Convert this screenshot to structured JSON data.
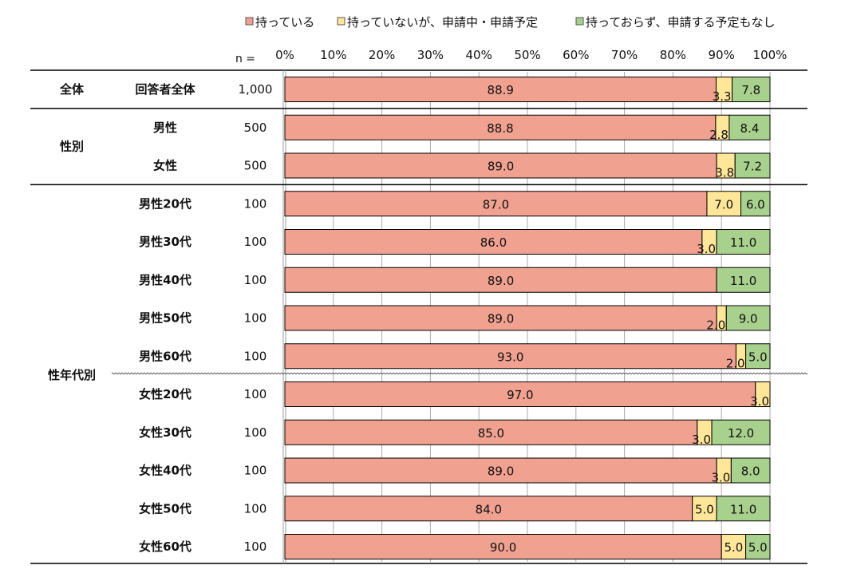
{
  "chart_data": {
    "type": "bar",
    "stacked": true,
    "orientation": "horizontal",
    "n_label": "n =",
    "xlim": [
      0,
      100
    ],
    "ticks": [
      "0%",
      "10%",
      "20%",
      "30%",
      "40%",
      "50%",
      "60%",
      "70%",
      "80%",
      "90%",
      "100%"
    ],
    "series": [
      {
        "name": "持っている",
        "color": "#F0A190"
      },
      {
        "name": "持っていないが、申請中・申請予定",
        "color": "#FFE699"
      },
      {
        "name": "持っておらず、申請する予定もなし",
        "color": "#A9D18E"
      }
    ],
    "groups": [
      {
        "label": "全体",
        "rows": [
          {
            "label": "回答者全体",
            "n": "1,000",
            "values": [
              88.9,
              3.3,
              7.8
            ]
          }
        ]
      },
      {
        "label": "性別",
        "rows": [
          {
            "label": "男性",
            "n": "500",
            "values": [
              88.8,
              2.8,
              8.4
            ]
          },
          {
            "label": "女性",
            "n": "500",
            "values": [
              89.0,
              3.8,
              7.2
            ]
          }
        ]
      },
      {
        "label": "性年代別",
        "rows": [
          {
            "label": "男性20代",
            "n": "100",
            "values": [
              87.0,
              7.0,
              6.0
            ]
          },
          {
            "label": "男性30代",
            "n": "100",
            "values": [
              86.0,
              3.0,
              11.0
            ]
          },
          {
            "label": "男性40代",
            "n": "100",
            "values": [
              89.0,
              0,
              11.0
            ]
          },
          {
            "label": "男性50代",
            "n": "100",
            "values": [
              89.0,
              2.0,
              9.0
            ]
          },
          {
            "label": "男性60代",
            "n": "100",
            "values": [
              93.0,
              2.0,
              5.0
            ]
          },
          {
            "label": "女性20代",
            "n": "100",
            "values": [
              97.0,
              3.0,
              0
            ]
          },
          {
            "label": "女性30代",
            "n": "100",
            "values": [
              85.0,
              3.0,
              12.0
            ]
          },
          {
            "label": "女性40代",
            "n": "100",
            "values": [
              89.0,
              3.0,
              8.0
            ]
          },
          {
            "label": "女性50代",
            "n": "100",
            "values": [
              84.0,
              5.0,
              11.0
            ]
          },
          {
            "label": "女性60代",
            "n": "100",
            "values": [
              90.0,
              5.0,
              5.0
            ]
          }
        ]
      }
    ]
  }
}
